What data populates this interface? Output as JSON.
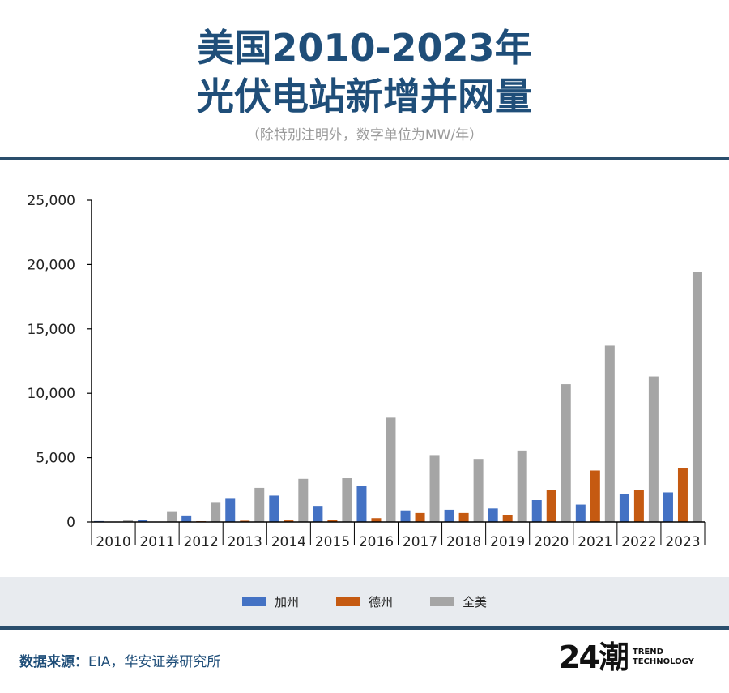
{
  "title_line1": "美国2010-2023年",
  "title_line2": "光伏电站新增并网量",
  "subtitle": "（除特别注明外，数字单位为MW/年）",
  "source_label": "数据来源：",
  "source_text": "EIA，华安证券研究所",
  "logo": {
    "mark": "24潮",
    "line1": "TREND",
    "line2": "TECHNOLOGY"
  },
  "colors": {
    "title": "#1f4e79",
    "series_ca": "#4472c4",
    "series_tx": "#c55a11",
    "series_us": "#a5a5a5"
  },
  "chart_data": {
    "type": "bar",
    "title": "美国2010-2023年光伏电站新增并网量",
    "xlabel": "",
    "ylabel": "MW/年",
    "ylim": [
      0,
      25000
    ],
    "yticks": [
      "0",
      "5,000",
      "10,000",
      "15,000",
      "20,000",
      "25,000"
    ],
    "ytick_values": [
      0,
      5000,
      10000,
      15000,
      20000,
      25000
    ],
    "categories": [
      "2010",
      "2011",
      "2012",
      "2013",
      "2014",
      "2015",
      "2016",
      "2017",
      "2018",
      "2019",
      "2020",
      "2021",
      "2022",
      "2023"
    ],
    "legend_position": "bottom",
    "series": [
      {
        "name": "加州",
        "color": "#4472c4",
        "values": [
          70,
          150,
          450,
          1800,
          2050,
          1250,
          2800,
          900,
          950,
          1050,
          1700,
          1350,
          2150,
          2300
        ]
      },
      {
        "name": "德州",
        "color": "#c55a11",
        "values": [
          20,
          30,
          60,
          100,
          120,
          180,
          300,
          700,
          700,
          550,
          2500,
          4000,
          2500,
          4200
        ]
      },
      {
        "name": "全美",
        "color": "#a5a5a5",
        "values": [
          120,
          780,
          1550,
          2650,
          3350,
          3400,
          8100,
          5200,
          4900,
          5550,
          10700,
          13700,
          11300,
          19400
        ]
      }
    ]
  }
}
